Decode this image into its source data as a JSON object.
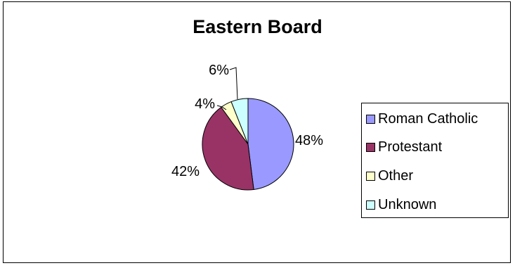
{
  "chart_data": {
    "type": "pie",
    "title": "Eastern Board",
    "categories": [
      "Roman Catholic",
      "Protestant",
      "Other",
      "Unknown"
    ],
    "values": [
      48,
      42,
      4,
      6
    ],
    "labels": [
      "48%",
      "42%",
      "4%",
      "6%"
    ],
    "colors": [
      "#9999FF",
      "#993366",
      "#FFFFCC",
      "#CCFFFF"
    ],
    "legend_position": "right"
  }
}
